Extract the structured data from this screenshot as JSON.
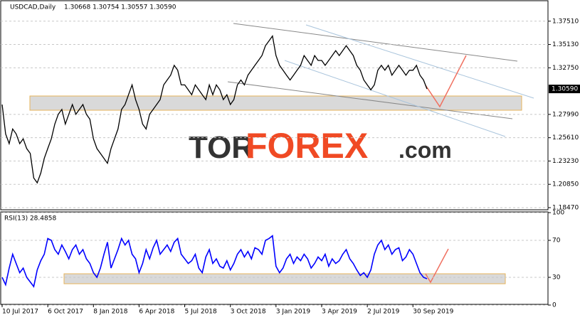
{
  "chart_data": [
    {
      "type": "line",
      "title": "USDCAD,Daily",
      "subtitle": "1.30668 1.30754 1.30557 1.30590",
      "watermark": [
        "TOR",
        "FOREX",
        ".com"
      ],
      "categories": [
        "10 Jul 2017",
        null,
        null,
        null,
        null,
        null,
        null,
        null,
        null,
        null,
        null,
        null,
        null,
        "6 Oct 2017",
        null,
        null,
        null,
        null,
        null,
        null,
        null,
        null,
        null,
        null,
        null,
        null,
        "8 Jan 2018",
        null,
        null,
        null,
        null,
        null,
        null,
        null,
        null,
        null,
        null,
        null,
        null,
        "6 Apr 2018",
        null,
        null,
        null,
        null,
        null,
        null,
        null,
        null,
        null,
        null,
        null,
        null,
        "5 Jul 2018",
        null,
        null,
        null,
        null,
        null,
        null,
        null,
        null,
        null,
        null,
        null,
        null,
        "3 Oct 2018",
        null,
        null,
        null,
        null,
        null,
        null,
        null,
        null,
        null,
        null,
        null,
        null,
        "3 Jan 2019",
        null,
        null,
        null,
        null,
        null,
        null,
        null,
        null,
        null,
        null,
        null,
        null,
        "3 Apr 2019",
        null,
        null,
        null,
        null,
        null,
        null,
        null,
        null,
        null,
        null,
        null,
        null,
        "2 Jul 2019",
        null,
        null,
        null,
        null,
        null,
        null,
        null,
        null,
        null,
        null,
        null,
        null,
        "30 Sep 2019",
        null,
        null,
        null,
        null
      ],
      "series": [
        {
          "name": "USDCAD",
          "color": "#000000",
          "values": [
            1.29,
            1.26,
            1.25,
            1.265,
            1.26,
            1.25,
            1.255,
            1.245,
            1.24,
            1.215,
            1.21,
            1.22,
            1.235,
            1.245,
            1.255,
            1.27,
            1.28,
            1.285,
            1.27,
            1.28,
            1.29,
            1.28,
            1.285,
            1.29,
            1.28,
            1.275,
            1.255,
            1.245,
            1.24,
            1.235,
            1.23,
            1.245,
            1.255,
            1.265,
            1.285,
            1.29,
            1.3,
            1.31,
            1.295,
            1.285,
            1.27,
            1.265,
            1.28,
            1.285,
            1.29,
            1.295,
            1.31,
            1.315,
            1.32,
            1.33,
            1.325,
            1.31,
            1.31,
            1.305,
            1.3,
            1.31,
            1.305,
            1.3,
            1.295,
            1.31,
            1.3,
            1.31,
            1.305,
            1.295,
            1.3,
            1.29,
            1.295,
            1.31,
            1.315,
            1.31,
            1.32,
            1.325,
            1.33,
            1.335,
            1.34,
            1.35,
            1.355,
            1.36,
            1.34,
            1.33,
            1.325,
            1.32,
            1.315,
            1.32,
            1.325,
            1.33,
            1.34,
            1.335,
            1.33,
            1.34,
            1.335,
            1.335,
            1.33,
            1.335,
            1.34,
            1.345,
            1.34,
            1.345,
            1.35,
            1.345,
            1.34,
            1.33,
            1.325,
            1.315,
            1.31,
            1.305,
            1.31,
            1.325,
            1.33,
            1.325,
            1.33,
            1.32,
            1.325,
            1.33,
            1.325,
            1.32,
            1.325,
            1.325,
            1.33,
            1.32,
            1.315,
            1.3059
          ]
        }
      ],
      "last_price": {
        "value": 1.3059,
        "label": "1.30590"
      },
      "ylim": [
        1.1825,
        1.396
      ],
      "yticks": [
        {
          "value": 1.3751,
          "label": "1.37510"
        },
        {
          "value": 1.3513,
          "label": "1.35130"
        },
        {
          "value": 1.3275,
          "label": "1.32750"
        },
        {
          "value": 1.2799,
          "label": "1.27990"
        },
        {
          "value": 1.2561,
          "label": "1.25610"
        },
        {
          "value": 1.2323,
          "label": "1.23230"
        },
        {
          "value": 1.2085,
          "label": "1.20850"
        },
        {
          "value": 1.1847,
          "label": "1.18470"
        }
      ],
      "grid": true
    },
    {
      "type": "line",
      "title": "RSI(13) 28.4858",
      "series": [
        {
          "name": "RSI(13)",
          "color": "#0000ff",
          "values": [
            30,
            22,
            40,
            55,
            45,
            35,
            40,
            30,
            25,
            20,
            38,
            48,
            55,
            72,
            70,
            60,
            55,
            65,
            58,
            50,
            60,
            65,
            55,
            60,
            50,
            45,
            35,
            30,
            40,
            55,
            68,
            40,
            50,
            60,
            72,
            65,
            70,
            55,
            50,
            35,
            45,
            60,
            50,
            62,
            70,
            55,
            60,
            65,
            58,
            68,
            72,
            55,
            50,
            45,
            48,
            55,
            40,
            35,
            52,
            60,
            45,
            50,
            42,
            40,
            48,
            38,
            45,
            55,
            60,
            52,
            58,
            50,
            62,
            60,
            55,
            70,
            72,
            75,
            42,
            35,
            40,
            50,
            55,
            45,
            52,
            48,
            55,
            50,
            40,
            45,
            52,
            48,
            55,
            42,
            50,
            45,
            48,
            55,
            60,
            50,
            45,
            38,
            32,
            35,
            30,
            38,
            55,
            65,
            70,
            60,
            65,
            55,
            60,
            62,
            48,
            52,
            60,
            55,
            45,
            35,
            30,
            28.4858
          ]
        }
      ],
      "ylim": [
        0,
        100
      ],
      "yticks": [
        100,
        70,
        30,
        0
      ],
      "grid": true
    }
  ]
}
